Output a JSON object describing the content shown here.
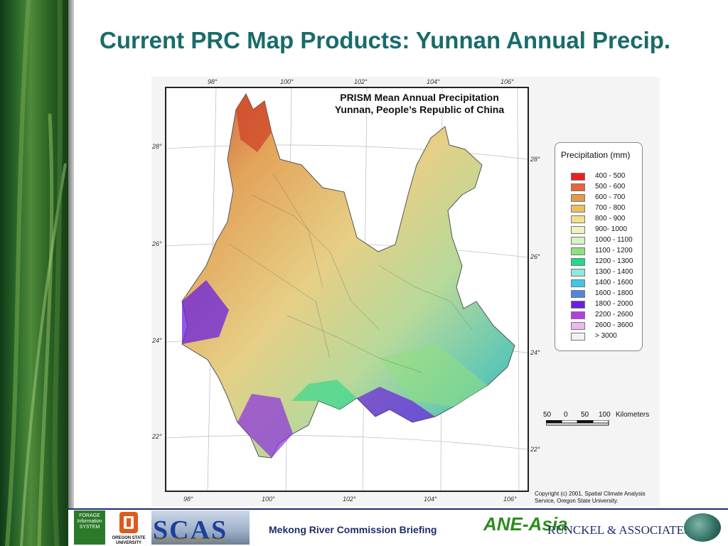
{
  "slide": {
    "title": "Current PRC Map Products: Yunnan Annual Precip."
  },
  "map": {
    "title_line1": "PRISM Mean Annual Precipitation",
    "title_line2": "Yunnan, People’s Republic of China",
    "lon_labels": [
      "98°",
      "100°",
      "102°",
      "104°",
      "106°"
    ],
    "lat_labels": [
      "28°",
      "26°",
      "24°",
      "22°"
    ],
    "copyright": "Copyright (c) 2001, Spatial Climate Analysis Service, Oregon State University."
  },
  "legend": {
    "title": "Precipitation (mm)",
    "classes": [
      {
        "label": "400 - 500",
        "color": "#e8231f"
      },
      {
        "label": "500 - 600",
        "color": "#e8643a"
      },
      {
        "label": "600 - 700",
        "color": "#e39a4a"
      },
      {
        "label": "700 - 800",
        "color": "#ecbf5c"
      },
      {
        "label": "800 - 900",
        "color": "#f2e08a"
      },
      {
        "label": "900- 1000",
        "color": "#eef2c2"
      },
      {
        "label": "1000 - 1100",
        "color": "#d6f2c8"
      },
      {
        "label": "1100 - 1200",
        "color": "#8fe07e"
      },
      {
        "label": "1200 - 1300",
        "color": "#22d98a"
      },
      {
        "label": "1300 - 1400",
        "color": "#8de8e0"
      },
      {
        "label": "1400 - 1600",
        "color": "#3fc7e8"
      },
      {
        "label": "1600 - 1800",
        "color": "#4f86e0"
      },
      {
        "label": "1800 - 2000",
        "color": "#6a1fe0"
      },
      {
        "label": "2200 - 2600",
        "color": "#b23fe0"
      },
      {
        "label": "2600 - 3600",
        "color": "#eab8ec"
      },
      {
        "label": ">  3000",
        "color": "#f2f2f2"
      }
    ]
  },
  "scale": {
    "numbers": [
      "50",
      "0",
      "50",
      "100"
    ],
    "unit": "Kilometers"
  },
  "footer": {
    "briefing": "Mekong River Commission Briefing",
    "forage_text": "FORAGE Information SYSTEM",
    "osu_text": "OREGON STATE UNIVERSITY",
    "scas_text": "SCAS",
    "scas_sub": "Spatial Climate Analysis Service",
    "ane_text": "ANE-Asia",
    "runckel_text": "RUNCKEL & ASSOCIATES"
  }
}
